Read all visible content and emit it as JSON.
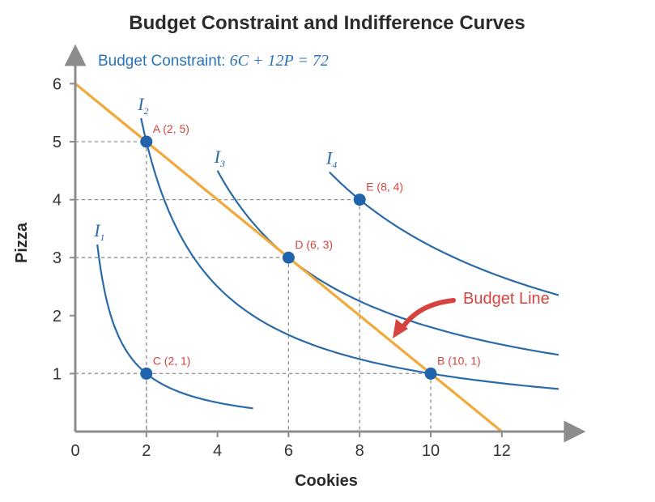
{
  "chart_data": {
    "type": "line",
    "title": "Budget Constraint and Indifference Curves",
    "subtitle_prefix": "Budget Constraint: ",
    "subtitle_equation": "6C + 12P = 72",
    "xlabel": "Cookies",
    "ylabel": "Pizza",
    "xlim": [
      0,
      13.9
    ],
    "ylim": [
      0,
      6.4
    ],
    "xticks": [
      0,
      2,
      4,
      6,
      8,
      10,
      12
    ],
    "yticks": [
      1,
      2,
      3,
      4,
      5,
      6
    ],
    "grid": false,
    "budget_line": {
      "x": [
        0,
        12
      ],
      "y": [
        6,
        0
      ],
      "color": "#f2a93b"
    },
    "series": [
      {
        "letter": "I",
        "sub": "1",
        "k": 2,
        "x_start": 0.62,
        "x_end": 5.0
      },
      {
        "letter": "I",
        "sub": "2",
        "k": 10,
        "x_start": 1.85,
        "x_end": 13.6
      },
      {
        "letter": "I",
        "sub": "3",
        "k": 18,
        "x_start": 4.0,
        "x_end": 13.6
      },
      {
        "letter": "I",
        "sub": "4",
        "k": 32,
        "x_start": 7.15,
        "x_end": 13.6
      }
    ],
    "curve_color": "#2a6aa8",
    "points": [
      {
        "label": "A (2, 5)",
        "x": 2,
        "y": 5
      },
      {
        "label": "B (10, 1)",
        "x": 10,
        "y": 1
      },
      {
        "label": "C (2, 1)",
        "x": 2,
        "y": 1
      },
      {
        "label": "D (6, 3)",
        "x": 6,
        "y": 3
      },
      {
        "label": "E (8, 4)",
        "x": 8,
        "y": 4
      }
    ],
    "point_color": "#1f64ad",
    "annotation": {
      "text": "Budget Line",
      "color": "#d6443f"
    }
  }
}
